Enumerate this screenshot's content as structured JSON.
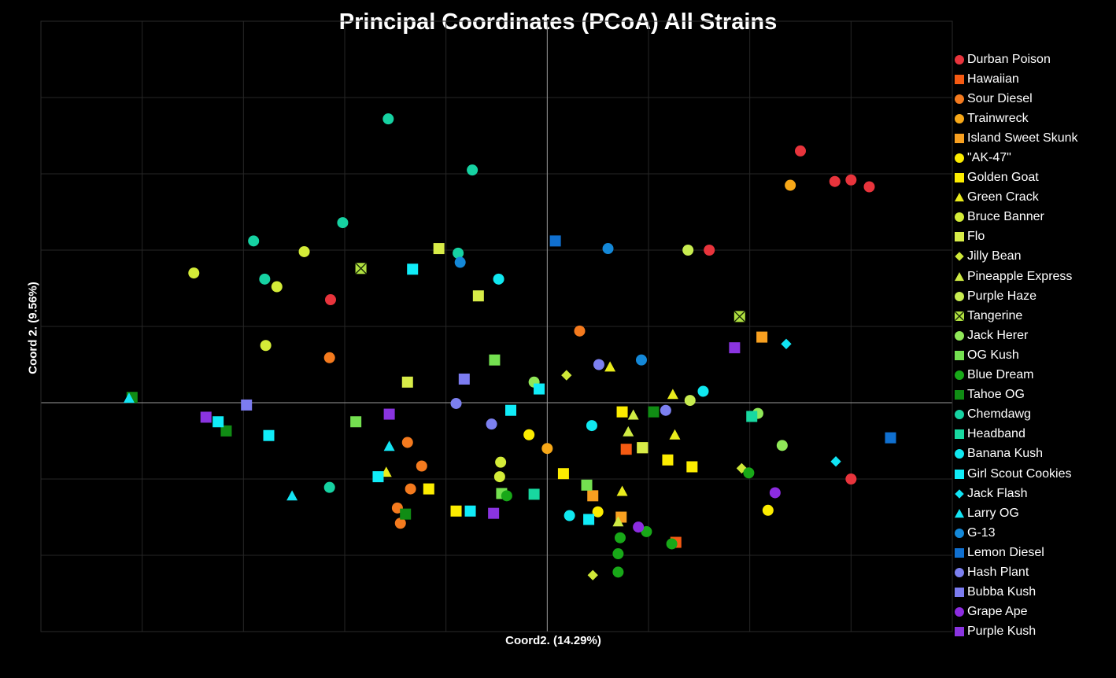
{
  "chart_data": {
    "type": "scatter",
    "title": "Principal Coordinates (PCoA) All Strains",
    "xlabel": "Coord2. (14.29%)",
    "ylabel": "Coord 2. (9.56%)",
    "xlim": [
      -0.5,
      0.4
    ],
    "ylim": [
      -0.3,
      0.5
    ],
    "grid": true,
    "legend_position": "right",
    "series": [
      {
        "name": "Durban Poison",
        "color": "#e8343c",
        "marker": "circle",
        "points": [
          [
            0.25,
            0.33
          ],
          [
            0.284,
            0.29
          ],
          [
            0.3,
            0.292
          ],
          [
            0.318,
            0.283
          ],
          [
            0.16,
            0.2
          ],
          [
            -0.214,
            0.135
          ],
          [
            0.3,
            -0.1
          ]
        ]
      },
      {
        "name": "Hawaiian",
        "color": "#f55a12",
        "marker": "square",
        "points": [
          [
            0.078,
            -0.061
          ],
          [
            0.127,
            -0.183
          ]
        ]
      },
      {
        "name": "Sour Diesel",
        "color": "#f47a1e",
        "marker": "circle",
        "points": [
          [
            0.032,
            0.094
          ],
          [
            -0.215,
            0.059
          ],
          [
            -0.138,
            -0.052
          ],
          [
            -0.124,
            -0.083
          ],
          [
            -0.135,
            -0.113
          ],
          [
            -0.148,
            -0.138
          ],
          [
            -0.145,
            -0.158
          ]
        ]
      },
      {
        "name": "Trainwreck",
        "color": "#f8a818",
        "marker": "circle",
        "points": [
          [
            0.24,
            0.285
          ],
          [
            0.0,
            -0.06
          ]
        ]
      },
      {
        "name": "Island Sweet Skunk",
        "color": "#f8a020",
        "marker": "square",
        "points": [
          [
            0.212,
            0.086
          ],
          [
            0.045,
            -0.122
          ],
          [
            0.073,
            -0.15
          ]
        ]
      },
      {
        "name": "\"AK-47\"",
        "color": "#fcec00",
        "marker": "circle",
        "points": [
          [
            -0.018,
            -0.042
          ],
          [
            0.05,
            -0.143
          ],
          [
            0.218,
            -0.141
          ]
        ]
      },
      {
        "name": "Golden Goat",
        "color": "#fcec00",
        "marker": "square",
        "points": [
          [
            0.074,
            -0.012
          ],
          [
            0.094,
            -0.059
          ],
          [
            0.119,
            -0.075
          ],
          [
            0.143,
            -0.084
          ],
          [
            0.016,
            -0.093
          ],
          [
            -0.117,
            -0.113
          ],
          [
            -0.09,
            -0.142
          ]
        ]
      },
      {
        "name": "Green Crack",
        "color": "#eaec1c",
        "marker": "triangle",
        "points": [
          [
            0.062,
            0.047
          ],
          [
            0.124,
            0.011
          ],
          [
            0.126,
            -0.042
          ],
          [
            0.074,
            -0.116
          ],
          [
            -0.159,
            -0.091
          ]
        ]
      },
      {
        "name": "Bruce Banner",
        "color": "#d4ec38",
        "marker": "circle",
        "points": [
          [
            -0.349,
            0.17
          ],
          [
            -0.24,
            0.198
          ],
          [
            -0.267,
            0.152
          ],
          [
            -0.278,
            0.075
          ],
          [
            -0.046,
            -0.078
          ],
          [
            -0.047,
            -0.097
          ]
        ]
      },
      {
        "name": "Flo",
        "color": "#d8ec48",
        "marker": "square",
        "points": [
          [
            -0.107,
            0.202
          ],
          [
            -0.068,
            0.14
          ],
          [
            -0.138,
            0.027
          ],
          [
            0.094,
            -0.059
          ]
        ]
      },
      {
        "name": "Jilly Bean",
        "color": "#cfe838",
        "marker": "diamond",
        "points": [
          [
            0.019,
            0.036
          ],
          [
            0.192,
            -0.086
          ],
          [
            0.045,
            -0.226
          ]
        ]
      },
      {
        "name": "Pineapple Express",
        "color": "#cfeb44",
        "marker": "triangle",
        "points": [
          [
            0.085,
            -0.016
          ],
          [
            0.08,
            -0.038
          ],
          [
            0.07,
            -0.156
          ]
        ]
      },
      {
        "name": "Purple Haze",
        "color": "#c8ec50",
        "marker": "circle",
        "points": [
          [
            0.139,
            0.2
          ],
          [
            0.141,
            0.003
          ]
        ]
      },
      {
        "name": "Tangerine",
        "color": "#b0e040",
        "marker": "boxx",
        "points": [
          [
            -0.184,
            0.176
          ],
          [
            0.19,
            0.113
          ]
        ]
      },
      {
        "name": "Jack Herer",
        "color": "#90e858",
        "marker": "circle",
        "points": [
          [
            -0.013,
            0.027
          ],
          [
            0.208,
            -0.014
          ],
          [
            0.232,
            -0.056
          ]
        ]
      },
      {
        "name": "OG Kush",
        "color": "#74e050",
        "marker": "square",
        "points": [
          [
            -0.052,
            0.056
          ],
          [
            -0.189,
            -0.025
          ],
          [
            -0.045,
            -0.119
          ],
          [
            0.039,
            -0.108
          ]
        ]
      },
      {
        "name": "Blue Dream",
        "color": "#18a818",
        "marker": "circle",
        "points": [
          [
            -0.04,
            -0.122
          ],
          [
            0.072,
            -0.177
          ],
          [
            0.098,
            -0.169
          ],
          [
            0.123,
            -0.185
          ],
          [
            0.07,
            -0.198
          ],
          [
            0.07,
            -0.222
          ],
          [
            0.199,
            -0.092
          ]
        ]
      },
      {
        "name": "Tahoe OG",
        "color": "#108c14",
        "marker": "square",
        "points": [
          [
            -0.41,
            0.007
          ],
          [
            -0.317,
            -0.037
          ],
          [
            -0.14,
            -0.146
          ],
          [
            0.105,
            -0.012
          ]
        ]
      },
      {
        "name": "Chemdawg",
        "color": "#16d2a2",
        "marker": "circle",
        "points": [
          [
            -0.157,
            0.372
          ],
          [
            -0.074,
            0.305
          ],
          [
            -0.202,
            0.236
          ],
          [
            -0.29,
            0.212
          ],
          [
            -0.279,
            0.162
          ],
          [
            -0.088,
            0.196
          ],
          [
            -0.215,
            -0.111
          ]
        ]
      },
      {
        "name": "Headband",
        "color": "#18d8a0",
        "marker": "square",
        "points": [
          [
            0.202,
            -0.018
          ],
          [
            -0.013,
            -0.12
          ]
        ]
      },
      {
        "name": "Banana Kush",
        "color": "#10e8f0",
        "marker": "circle",
        "points": [
          [
            -0.048,
            0.162
          ],
          [
            0.154,
            0.015
          ],
          [
            0.044,
            -0.03
          ],
          [
            0.022,
            -0.148
          ]
        ]
      },
      {
        "name": "Girl Scout Cookies",
        "color": "#10ecf8",
        "marker": "square",
        "points": [
          [
            -0.133,
            0.175
          ],
          [
            -0.008,
            0.018
          ],
          [
            -0.036,
            -0.01
          ],
          [
            -0.325,
            -0.025
          ],
          [
            -0.275,
            -0.043
          ],
          [
            -0.167,
            -0.097
          ],
          [
            -0.076,
            -0.142
          ],
          [
            0.041,
            -0.153
          ]
        ]
      },
      {
        "name": "Jack Flash",
        "color": "#10e4f4",
        "marker": "diamond",
        "points": [
          [
            0.236,
            0.077
          ],
          [
            0.285,
            -0.077
          ]
        ]
      },
      {
        "name": "Larry OG",
        "color": "#14e4f4",
        "marker": "triangle",
        "points": [
          [
            -0.413,
            0.006
          ],
          [
            -0.156,
            -0.057
          ],
          [
            -0.252,
            -0.122
          ]
        ]
      },
      {
        "name": "G-13",
        "color": "#1488d8",
        "marker": "circle",
        "points": [
          [
            -0.086,
            0.184
          ],
          [
            0.06,
            0.202
          ],
          [
            0.093,
            0.056
          ]
        ]
      },
      {
        "name": "Lemon Diesel",
        "color": "#1070d0",
        "marker": "square",
        "points": [
          [
            0.008,
            0.212
          ],
          [
            0.339,
            -0.046
          ]
        ]
      },
      {
        "name": "Hash Plant",
        "color": "#7c80f0",
        "marker": "circle",
        "points": [
          [
            0.051,
            0.05
          ],
          [
            -0.09,
            -0.001
          ],
          [
            -0.055,
            -0.028
          ],
          [
            0.117,
            -0.01
          ]
        ]
      },
      {
        "name": "Bubba Kush",
        "color": "#7c7cf0",
        "marker": "square",
        "points": [
          [
            -0.297,
            -0.003
          ],
          [
            -0.082,
            0.031
          ]
        ]
      },
      {
        "name": "Grape Ape",
        "color": "#8c2ce0",
        "marker": "circle",
        "points": [
          [
            0.09,
            -0.163
          ],
          [
            0.225,
            -0.118
          ]
        ]
      },
      {
        "name": "Purple Kush",
        "color": "#8a34e0",
        "marker": "square",
        "points": [
          [
            -0.337,
            -0.019
          ],
          [
            -0.156,
            -0.015
          ],
          [
            -0.053,
            -0.145
          ],
          [
            0.185,
            0.072
          ]
        ]
      }
    ]
  }
}
